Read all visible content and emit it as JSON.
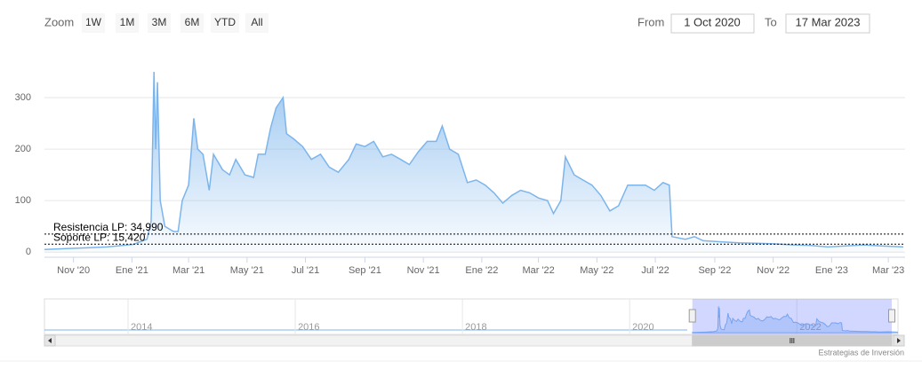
{
  "ui": {
    "zoom_label": "Zoom",
    "zoom_buttons": [
      "1W",
      "1M",
      "3M",
      "6M",
      "YTD",
      "All"
    ],
    "from_label": "From",
    "from_value": "1 Oct 2020",
    "to_label": "To",
    "to_value": "17 Mar 2023",
    "credit": "Estrategias de Inversión"
  },
  "chart_data": {
    "type": "area",
    "color": "#7cb5ec",
    "x": [
      2020.75,
      2020.852,
      2020.928,
      2021.004,
      2021.043,
      2021.055,
      2021.063,
      2021.068,
      2021.073,
      2021.081,
      2021.094,
      2021.119,
      2021.132,
      2021.144,
      2021.162,
      2021.177,
      2021.188,
      2021.203,
      2021.221,
      2021.233,
      2021.259,
      2021.279,
      2021.297,
      2021.323,
      2021.348,
      2021.361,
      2021.381,
      2021.396,
      2021.412,
      2021.432,
      2021.442,
      2021.462,
      2021.488,
      2021.513,
      2021.539,
      2021.564,
      2021.59,
      2021.62,
      2021.641,
      2021.666,
      2021.691,
      2021.717,
      2021.742,
      2021.768,
      2021.793,
      2021.819,
      2021.844,
      2021.87,
      2021.887,
      2021.908,
      2021.933,
      2021.959,
      2021.984,
      2022.01,
      2022.035,
      2022.06,
      2022.086,
      2022.111,
      2022.137,
      2022.162,
      2022.188,
      2022.205,
      2022.226,
      2022.239,
      2022.264,
      2022.289,
      2022.315,
      2022.34,
      2022.366,
      2022.391,
      2022.417,
      2022.442,
      2022.468,
      2022.493,
      2022.518,
      2022.536,
      2022.544,
      2022.582,
      2022.608,
      2022.633,
      2022.684,
      2022.735,
      2022.786,
      2022.837,
      2022.887,
      2022.938,
      2022.989,
      2023.04,
      2023.091,
      2023.142,
      2023.205
    ],
    "values": [
      5,
      8,
      10,
      15,
      25,
      60,
      350,
      200,
      330,
      100,
      50,
      40,
      40,
      100,
      130,
      260,
      200,
      190,
      120,
      190,
      160,
      150,
      180,
      150,
      145,
      190,
      190,
      240,
      280,
      300,
      230,
      220,
      205,
      180,
      190,
      165,
      155,
      180,
      210,
      205,
      215,
      185,
      190,
      180,
      170,
      195,
      215,
      215,
      245,
      200,
      190,
      135,
      140,
      130,
      115,
      95,
      110,
      120,
      115,
      105,
      100,
      75,
      100,
      185,
      150,
      140,
      130,
      110,
      80,
      90,
      130,
      130,
      130,
      120,
      135,
      130,
      30,
      25,
      30,
      22,
      20,
      18,
      17,
      16,
      14,
      13,
      10,
      12,
      14,
      12,
      10
    ],
    "xlim": [
      2020.75,
      2023.21
    ],
    "ylim": [
      -10,
      400
    ],
    "xticks": [
      {
        "value": 2020.833,
        "label": "Nov '20"
      },
      {
        "value": 2021.0,
        "label": "Ene '21"
      },
      {
        "value": 2021.162,
        "label": "Mar '21"
      },
      {
        "value": 2021.329,
        "label": "May '21"
      },
      {
        "value": 2021.496,
        "label": "Jul '21"
      },
      {
        "value": 2021.666,
        "label": "Sep '21"
      },
      {
        "value": 2021.833,
        "label": "Nov '21"
      },
      {
        "value": 2022.0,
        "label": "Ene '22"
      },
      {
        "value": 2022.162,
        "label": "Mar '22"
      },
      {
        "value": 2022.329,
        "label": "May '22"
      },
      {
        "value": 2022.496,
        "label": "Jul '22"
      },
      {
        "value": 2022.666,
        "label": "Sep '22"
      },
      {
        "value": 2022.833,
        "label": "Nov '22"
      },
      {
        "value": 2023.0,
        "label": "Ene '23"
      },
      {
        "value": 2023.162,
        "label": "Mar '23"
      }
    ],
    "yticks": [
      0,
      100,
      200,
      300
    ],
    "grid": true,
    "plot_lines": [
      {
        "value": 34.99,
        "label": "Resistencia LP: 34,990"
      },
      {
        "value": 15.42,
        "label": "Soporte LP: 15,420"
      }
    ],
    "navigator": {
      "xlim": [
        2013,
        2023.21
      ],
      "xticks": [
        2014,
        2016,
        2018,
        2020,
        2022
      ]
    }
  }
}
